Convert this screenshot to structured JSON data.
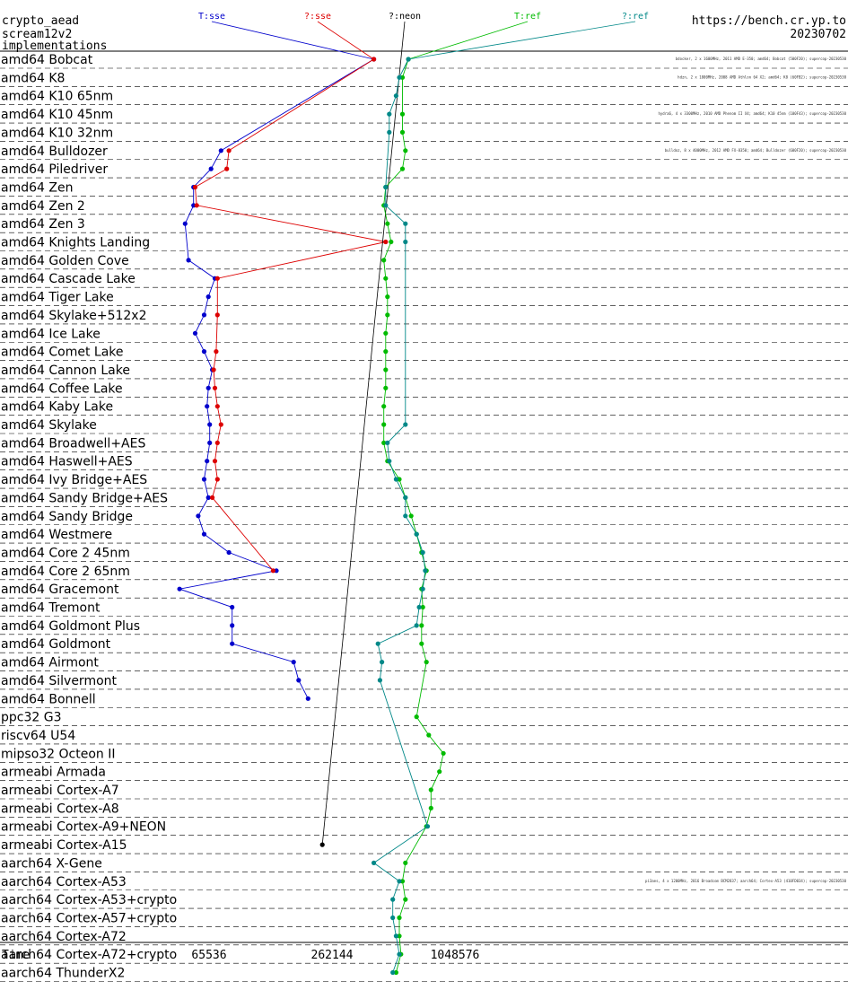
{
  "header": {
    "left_lines": [
      "crypto_aead",
      "scream12v2",
      "implementations"
    ],
    "right_lines": [
      "https://bench.cr.yp.to",
      "20230702"
    ]
  },
  "chart_data": {
    "type": "scatter",
    "xlabel": "Time",
    "x_scale": "log",
    "x_ticks": [
      65536,
      262144,
      1048576
    ],
    "x_tick_labels": [
      "65536",
      "262144",
      "1048576"
    ],
    "categories": [
      "amd64 Bobcat",
      "amd64 K8",
      "amd64 K10 65nm",
      "amd64 K10 45nm",
      "amd64 K10 32nm",
      "amd64 Bulldozer",
      "amd64 Piledriver",
      "amd64 Zen",
      "amd64 Zen 2",
      "amd64 Zen 3",
      "amd64 Knights Landing",
      "amd64 Golden Cove",
      "amd64 Cascade Lake",
      "amd64 Tiger Lake",
      "amd64 Skylake+512x2",
      "amd64 Ice Lake",
      "amd64 Comet Lake",
      "amd64 Cannon Lake",
      "amd64 Coffee Lake",
      "amd64 Kaby Lake",
      "amd64 Skylake",
      "amd64 Broadwell+AES",
      "amd64 Haswell+AES",
      "amd64 Ivy Bridge+AES",
      "amd64 Sandy Bridge+AES",
      "amd64 Sandy Bridge",
      "amd64 Westmere",
      "amd64 Core 2 45nm",
      "amd64 Core 2 65nm",
      "amd64 Gracemont",
      "amd64 Tremont",
      "amd64 Goldmont Plus",
      "amd64 Goldmont",
      "amd64 Airmont",
      "amd64 Silvermont",
      "amd64 Bonnell",
      "ppc32 G3",
      "riscv64 U54",
      "mipso32 Octeon II",
      "armeabi Armada",
      "armeabi Cortex-A7",
      "armeabi Cortex-A8",
      "armeabi Cortex-A9+NEON",
      "armeabi Cortex-A15",
      "aarch64 X-Gene",
      "aarch64 Cortex-A53",
      "aarch64 Cortex-A53+crypto",
      "aarch64 Cortex-A57+crypto",
      "aarch64 Cortex-A72",
      "aarch64 Cortex-A72+crypto",
      "aarch64 ThunderX2"
    ],
    "series": [
      {
        "name": "T:sse",
        "color": "#0000cc",
        "values": [
          420000,
          null,
          null,
          null,
          null,
          75000,
          67000,
          55000,
          55000,
          50000,
          null,
          52000,
          70000,
          65000,
          62000,
          56000,
          62000,
          68000,
          65000,
          64000,
          66000,
          66000,
          64000,
          62000,
          65000,
          58000,
          62000,
          82000,
          140000,
          47000,
          85000,
          85000,
          85000,
          170000,
          180000,
          200000,
          null,
          null,
          null,
          null,
          null,
          null,
          null,
          null,
          null,
          null,
          null,
          null,
          null,
          null,
          null
        ]
      },
      {
        "name": "?:sse",
        "color": "#dd0000",
        "values": [
          420000,
          null,
          null,
          null,
          null,
          82000,
          80000,
          56000,
          57000,
          null,
          480000,
          null,
          72000,
          null,
          72000,
          null,
          71000,
          69000,
          70000,
          72000,
          75000,
          72000,
          70000,
          72000,
          68000,
          null,
          null,
          null,
          135000,
          null,
          null,
          null,
          null,
          null,
          null,
          null,
          null,
          null,
          null,
          null,
          null,
          null,
          null,
          null,
          null,
          null,
          null,
          null,
          null,
          null,
          null
        ]
      },
      {
        "name": "?:neon",
        "color": "#000000",
        "values": [
          null,
          null,
          null,
          null,
          null,
          null,
          null,
          null,
          null,
          null,
          null,
          null,
          null,
          null,
          null,
          null,
          null,
          null,
          null,
          null,
          null,
          null,
          null,
          null,
          null,
          null,
          null,
          null,
          null,
          null,
          null,
          null,
          null,
          null,
          null,
          null,
          null,
          null,
          null,
          null,
          null,
          null,
          null,
          235000,
          null,
          null,
          null,
          null,
          null,
          null,
          null
        ]
      },
      {
        "name": "T:ref",
        "color": "#00bb00",
        "values": [
          620000,
          580000,
          null,
          580000,
          580000,
          600000,
          580000,
          480000,
          470000,
          490000,
          510000,
          470000,
          480000,
          490000,
          490000,
          480000,
          480000,
          480000,
          480000,
          470000,
          470000,
          470000,
          490000,
          560000,
          600000,
          640000,
          680000,
          720000,
          760000,
          720000,
          730000,
          720000,
          720000,
          760000,
          null,
          null,
          680000,
          780000,
          920000,
          880000,
          800000,
          800000,
          760000,
          null,
          600000,
          580000,
          600000,
          560000,
          560000,
          570000,
          540000
        ]
      },
      {
        "name": "?:ref",
        "color": "#008888",
        "values": [
          620000,
          560000,
          540000,
          500000,
          500000,
          null,
          null,
          480000,
          480000,
          600000,
          600000,
          null,
          null,
          null,
          null,
          null,
          null,
          null,
          null,
          null,
          600000,
          490000,
          500000,
          540000,
          600000,
          600000,
          680000,
          730000,
          750000,
          730000,
          700000,
          680000,
          440000,
          460000,
          450000,
          null,
          null,
          null,
          null,
          null,
          null,
          null,
          770000,
          null,
          420000,
          560000,
          520000,
          520000,
          540000,
          560000,
          520000
        ]
      }
    ]
  },
  "labels": [
    "bdocker, 2 x 1600MHz, 2011 AMD E-350; amd64; Bobcat (500F20); supercop-20230530",
    "hdzn, 2 x 1800MHz, 2008 AMD Athlon 64 X2; amd64; K8 (60FB2); supercop-20230530",
    "hydra6, 4 x 3300MHz, 2010 AMD Phenom II X4; amd64; K10 45nm (100F43); supercop-20230530",
    "bulldoz, 8 x 4000MHz, 2012 AMD FX-8350; amd64; Bulldozer (600F20); supercop-20230530",
    "pi3aes, 4 x 1200MHz, 2016 Broadcom BCM2837; aarch64; Cortex-A53 (410FD034); supercop-20230530"
  ]
}
